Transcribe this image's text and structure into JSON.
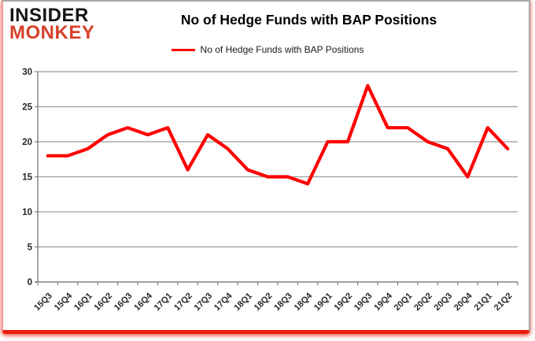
{
  "logo": {
    "line1": "INSIDER",
    "line2": "MONKEY",
    "accent_color": "#d8402a"
  },
  "header": {
    "title": "No of Hedge Funds with BAP Positions"
  },
  "legend": {
    "label": "No of Hedge Funds with BAP Positions",
    "line_color": "#fe0000"
  },
  "chart_data": {
    "type": "line",
    "title": "No of Hedge Funds with BAP Positions",
    "categories": [
      "15Q3",
      "15Q4",
      "16Q1",
      "16Q2",
      "16Q3",
      "16Q4",
      "17Q1",
      "17Q2",
      "17Q3",
      "17Q4",
      "18Q1",
      "18Q2",
      "18Q3",
      "18Q4",
      "19Q1",
      "19Q2",
      "19Q3",
      "19Q4",
      "20Q1",
      "20Q2",
      "20Q3",
      "20Q4",
      "21Q1",
      "21Q2"
    ],
    "series": [
      {
        "name": "No of Hedge Funds with BAP Positions",
        "values": [
          18,
          18,
          19,
          21,
          22,
          21,
          22,
          16,
          21,
          19,
          16,
          15,
          15,
          14,
          20,
          20,
          28,
          22,
          22,
          20,
          19,
          15,
          22,
          19
        ]
      }
    ],
    "xlabel": "",
    "ylabel": "",
    "ylim": [
      0,
      30
    ],
    "yticks": [
      0,
      5,
      10,
      15,
      20,
      25,
      30
    ],
    "grid": true,
    "legend_position": "top-center",
    "line_color": "#fe0000",
    "gridline_color": "#9b9b9b",
    "axis_color": "#808080",
    "tick_label_color": "#262626"
  }
}
